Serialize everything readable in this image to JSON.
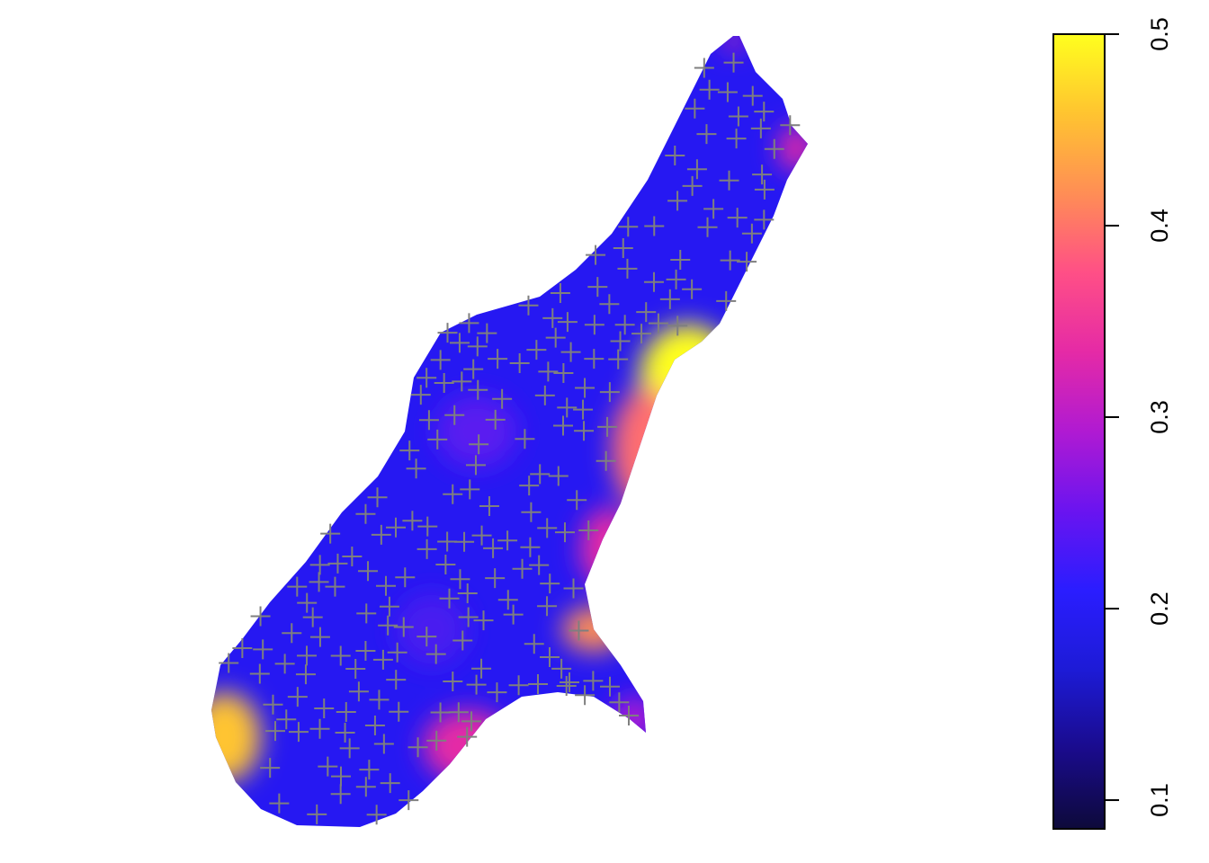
{
  "chart_data": {
    "type": "heatmap",
    "title": "",
    "xlabel": "",
    "ylabel": "",
    "description_of_marks": "prediction standard error surface over a region, with sample locations marked as plus signs",
    "colorbar": {
      "min": 0.085,
      "max": 0.5,
      "ticks": [
        0.1,
        0.2,
        0.3,
        0.4,
        0.5
      ],
      "tick_labels": [
        "0.1",
        "0.2",
        "0.3",
        "0.4",
        "0.5"
      ],
      "palette": [
        "#0d0a3a",
        "#1a0b8c",
        "#1d1bd6",
        "#2a1dff",
        "#6a14f0",
        "#b01ad2",
        "#e52aa6",
        "#ff4f86",
        "#ff8e55",
        "#ffc430",
        "#ffff1e"
      ]
    },
    "point_color": "#7f7f7f"
  }
}
